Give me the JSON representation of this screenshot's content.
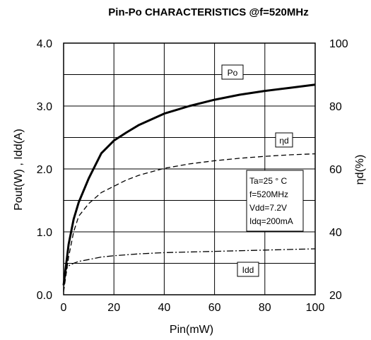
{
  "chart_data": {
    "type": "line",
    "title": "Pin-Po CHARACTERISTICS @f=520MHz",
    "xlabel": "Pin(mW)",
    "ylabel_left": "Pout(W) , Idd(A)",
    "ylabel_right": "ηd(%)",
    "xlim": [
      0,
      100
    ],
    "ylim_left": [
      0,
      4.0
    ],
    "ylim_right": [
      20,
      100
    ],
    "x_ticks": [
      "0",
      "20",
      "40",
      "60",
      "80",
      "100"
    ],
    "y_left_ticks": [
      "0.0",
      "1.0",
      "2.0",
      "3.0",
      "4.0"
    ],
    "y_right_ticks": [
      "20",
      "40",
      "60",
      "80",
      "100"
    ],
    "grid": true,
    "conditions": [
      "Ta=25 ° C",
      "f=520MHz",
      "Vdd=7.2V",
      "Idq=200mA"
    ],
    "series": [
      {
        "name": "Po",
        "axis": "left",
        "style": "solid-thick",
        "x": [
          0,
          2,
          4,
          6,
          10,
          15,
          20,
          25,
          30,
          40,
          50,
          60,
          70,
          80,
          90,
          100
        ],
        "y": [
          0.15,
          0.8,
          1.2,
          1.47,
          1.85,
          2.25,
          2.45,
          2.58,
          2.7,
          2.88,
          3.0,
          3.1,
          3.18,
          3.24,
          3.29,
          3.34
        ]
      },
      {
        "name": "ηd",
        "axis": "right",
        "style": "dashed",
        "x": [
          0,
          2,
          4,
          6,
          10,
          15,
          20,
          25,
          30,
          40,
          50,
          60,
          70,
          80,
          90,
          100
        ],
        "y": [
          21,
          32,
          40,
          45,
          49,
          52.5,
          54.5,
          56.5,
          58,
          60.2,
          61.6,
          62.6,
          63.4,
          64,
          64.5,
          64.8
        ]
      },
      {
        "name": "Idd",
        "axis": "left",
        "style": "dash-dot",
        "x": [
          0,
          1,
          2,
          4,
          6,
          10,
          15,
          20,
          30,
          40,
          50,
          60,
          70,
          80,
          90,
          100
        ],
        "y": [
          0.15,
          0.4,
          0.46,
          0.5,
          0.53,
          0.56,
          0.6,
          0.62,
          0.65,
          0.67,
          0.68,
          0.69,
          0.7,
          0.71,
          0.72,
          0.73
        ]
      }
    ]
  }
}
